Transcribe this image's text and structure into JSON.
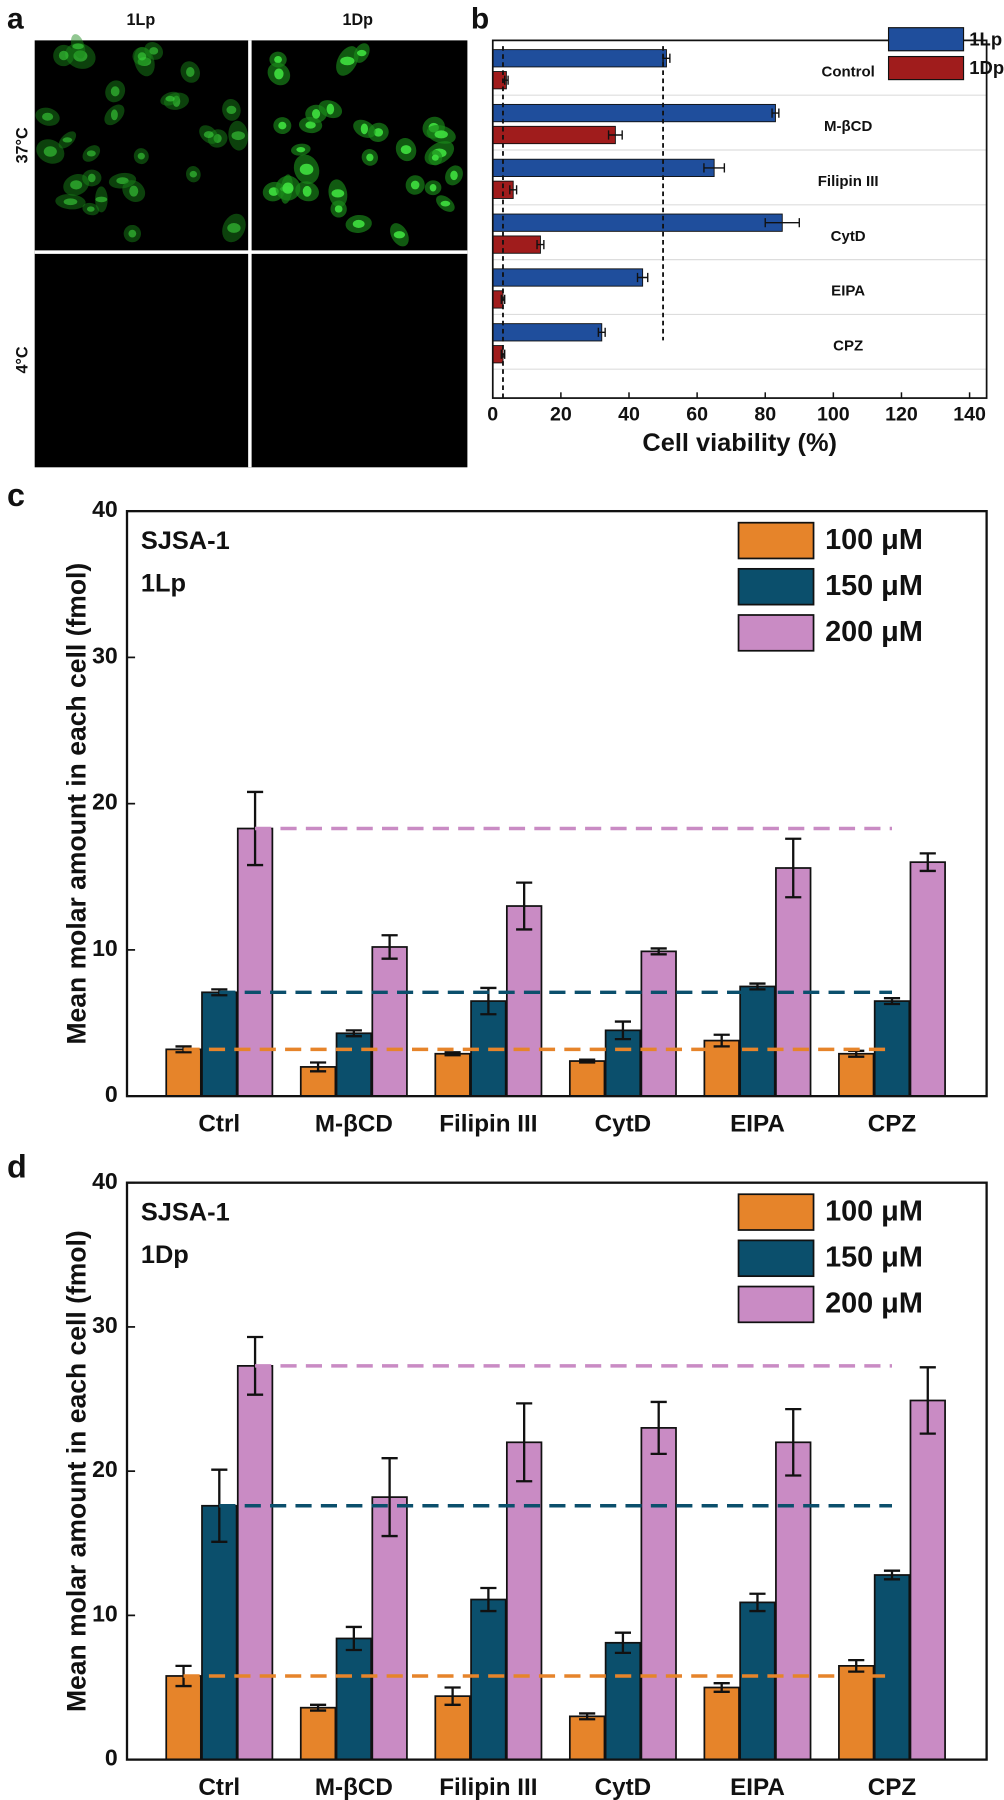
{
  "panel_a": {
    "label": "a",
    "columns": [
      "1Lp",
      "1Dp"
    ],
    "rows": [
      "37°C",
      "4°C"
    ]
  },
  "chart_data": [
    {
      "type": "hbar",
      "panel": "b",
      "xlabel": "Cell viability (%)",
      "categories": [
        "Control",
        "M-βCD",
        "Filipin III",
        "CytD",
        "EIPA",
        "CPZ"
      ],
      "series": [
        {
          "name": "1Lp",
          "color": "#1f4e9c",
          "values": [
            51,
            83,
            65,
            85,
            44,
            32
          ],
          "errors": [
            1,
            1,
            3,
            5,
            1.5,
            1
          ]
        },
        {
          "name": "1Dp",
          "color": "#a01c1c",
          "values": [
            4,
            36,
            6,
            14,
            3,
            3
          ],
          "errors": [
            0.5,
            2,
            1,
            1,
            0.5,
            0.5
          ]
        }
      ],
      "xlim": [
        0,
        145
      ],
      "xticks": [
        0,
        20,
        40,
        60,
        80,
        100,
        120,
        140
      ],
      "reference_lines": [
        50,
        3
      ],
      "legend": "top-right"
    },
    {
      "type": "bar",
      "panel": "c",
      "ylabel": "Mean molar amount in each cell (fmol)",
      "annotations": [
        "SJSA-1",
        "1Lp"
      ],
      "categories": [
        "Ctrl",
        "M-βCD",
        "Filipin III",
        "CytD",
        "EIPA",
        "CPZ"
      ],
      "series": [
        {
          "name": "100 μM",
          "color": "#e6842a",
          "values": [
            3.2,
            2.0,
            2.9,
            2.4,
            3.8,
            2.9
          ],
          "errors": [
            0.2,
            0.3,
            0.1,
            0.1,
            0.4,
            0.2
          ]
        },
        {
          "name": "150 μM",
          "color": "#0b4f6c",
          "values": [
            7.1,
            4.3,
            6.5,
            4.5,
            7.5,
            6.5
          ],
          "errors": [
            0.2,
            0.2,
            0.9,
            0.6,
            0.2,
            0.2
          ]
        },
        {
          "name": "200 μM",
          "color": "#c98bc4",
          "values": [
            18.3,
            10.2,
            13.0,
            9.9,
            15.6,
            16.0
          ],
          "errors": [
            2.5,
            0.8,
            1.6,
            0.2,
            2.0,
            0.6
          ]
        }
      ],
      "ylim": [
        0,
        40
      ],
      "yticks": [
        0,
        10,
        20,
        30,
        40
      ],
      "reference_lines": [
        3.2,
        7.1,
        18.3
      ],
      "legend": "top-right"
    },
    {
      "type": "bar",
      "panel": "d",
      "ylabel": "Mean molar amount in each cell (fmol)",
      "annotations": [
        "SJSA-1",
        "1Dp"
      ],
      "categories": [
        "Ctrl",
        "M-βCD",
        "Filipin III",
        "CytD",
        "EIPA",
        "CPZ"
      ],
      "series": [
        {
          "name": "100 μM",
          "color": "#e6842a",
          "values": [
            5.8,
            3.6,
            4.4,
            3.0,
            5.0,
            6.5
          ],
          "errors": [
            0.7,
            0.2,
            0.6,
            0.2,
            0.3,
            0.4
          ]
        },
        {
          "name": "150 μM",
          "color": "#0b4f6c",
          "values": [
            17.6,
            8.4,
            11.1,
            8.1,
            10.9,
            12.8
          ],
          "errors": [
            2.5,
            0.8,
            0.8,
            0.7,
            0.6,
            0.3
          ]
        },
        {
          "name": "200 μM",
          "color": "#c98bc4",
          "values": [
            27.3,
            18.2,
            22.0,
            23.0,
            22.0,
            24.9
          ],
          "errors": [
            2.0,
            2.7,
            2.7,
            1.8,
            2.3,
            2.3
          ]
        }
      ],
      "ylim": [
        0,
        40
      ],
      "yticks": [
        0,
        10,
        20,
        30,
        40
      ],
      "reference_lines": [
        5.8,
        17.6,
        27.3
      ],
      "legend": "top-right"
    }
  ]
}
